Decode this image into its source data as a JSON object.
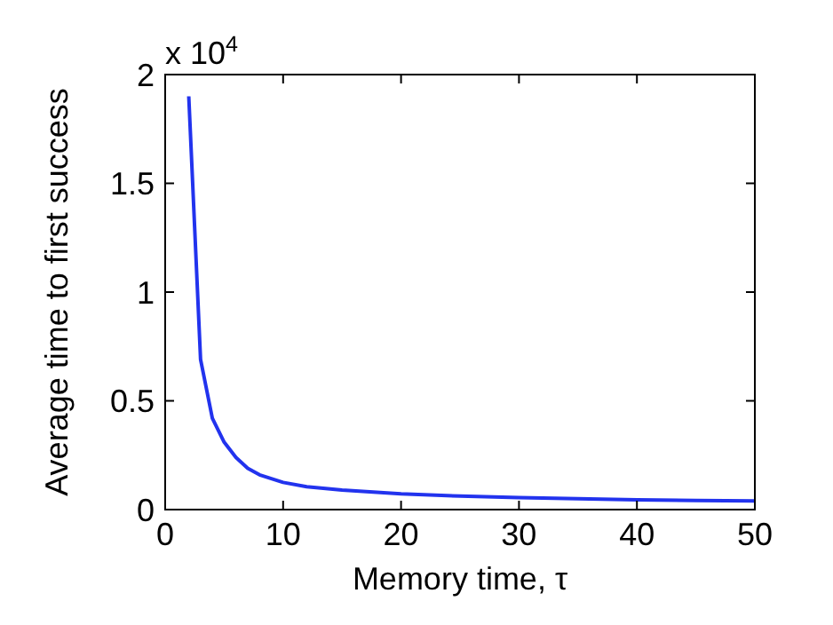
{
  "chart_data": {
    "type": "line",
    "xlabel": "Memory time, τ",
    "ylabel": "Average time to first success",
    "annotations": [
      "x 10$^{4}$"
    ],
    "x": [
      2,
      3,
      4,
      5,
      6,
      7,
      8,
      10,
      12,
      15,
      20,
      25,
      30,
      35,
      40,
      45,
      50
    ],
    "series": [
      {
        "color": "#2233ee",
        "values": [
          1.9,
          0.69,
          0.42,
          0.31,
          0.24,
          0.19,
          0.16,
          0.125,
          0.105,
          0.09,
          0.072,
          0.062,
          0.055,
          0.05,
          0.045,
          0.042,
          0.04
        ]
      }
    ],
    "xlim": [
      0,
      50
    ],
    "xticks": [
      0,
      10,
      20,
      30,
      40,
      50
    ],
    "ylim": [
      0,
      2
    ],
    "yticks": [
      0,
      0.5,
      1,
      1.5,
      2
    ],
    "grid": false,
    "line_style": "solid",
    "marker": "none"
  }
}
